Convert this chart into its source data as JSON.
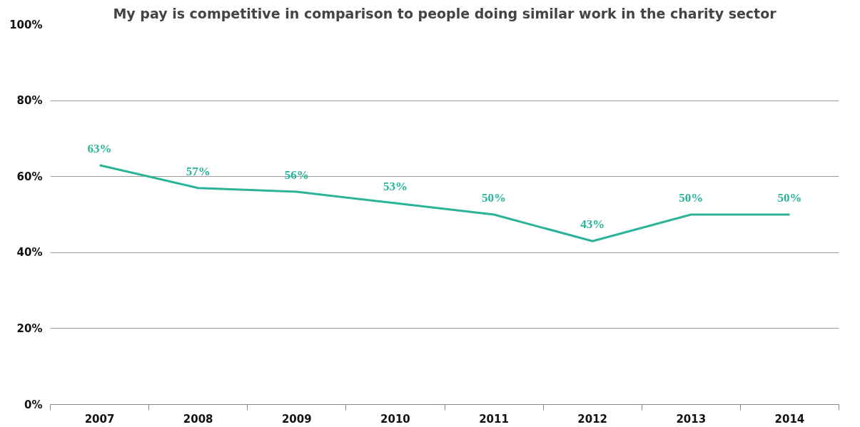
{
  "chart_data": {
    "type": "line",
    "title": "My pay is competitive in comparison to people doing similar work in the charity sector",
    "categories": [
      "2007",
      "2008",
      "2009",
      "2010",
      "2011",
      "2012",
      "2013",
      "2014"
    ],
    "series": [
      {
        "color": "#2bb39a",
        "values": [
          63,
          57,
          56,
          53,
          50,
          43,
          50,
          50
        ],
        "value_labels": [
          "63%",
          "57%",
          "56%",
          "53%",
          "50%",
          "43%",
          "50%",
          "50%"
        ]
      }
    ],
    "ylim": [
      0,
      100
    ],
    "yticks": [
      {
        "value": 0,
        "label": "0%"
      },
      {
        "value": 20,
        "label": "20%"
      },
      {
        "value": 40,
        "label": "40%"
      },
      {
        "value": 60,
        "label": "60%"
      },
      {
        "value": 80,
        "label": "80%"
      },
      {
        "value": 100,
        "label": "100%"
      }
    ],
    "grid": "y",
    "marker": "none",
    "line_style": "solid"
  }
}
